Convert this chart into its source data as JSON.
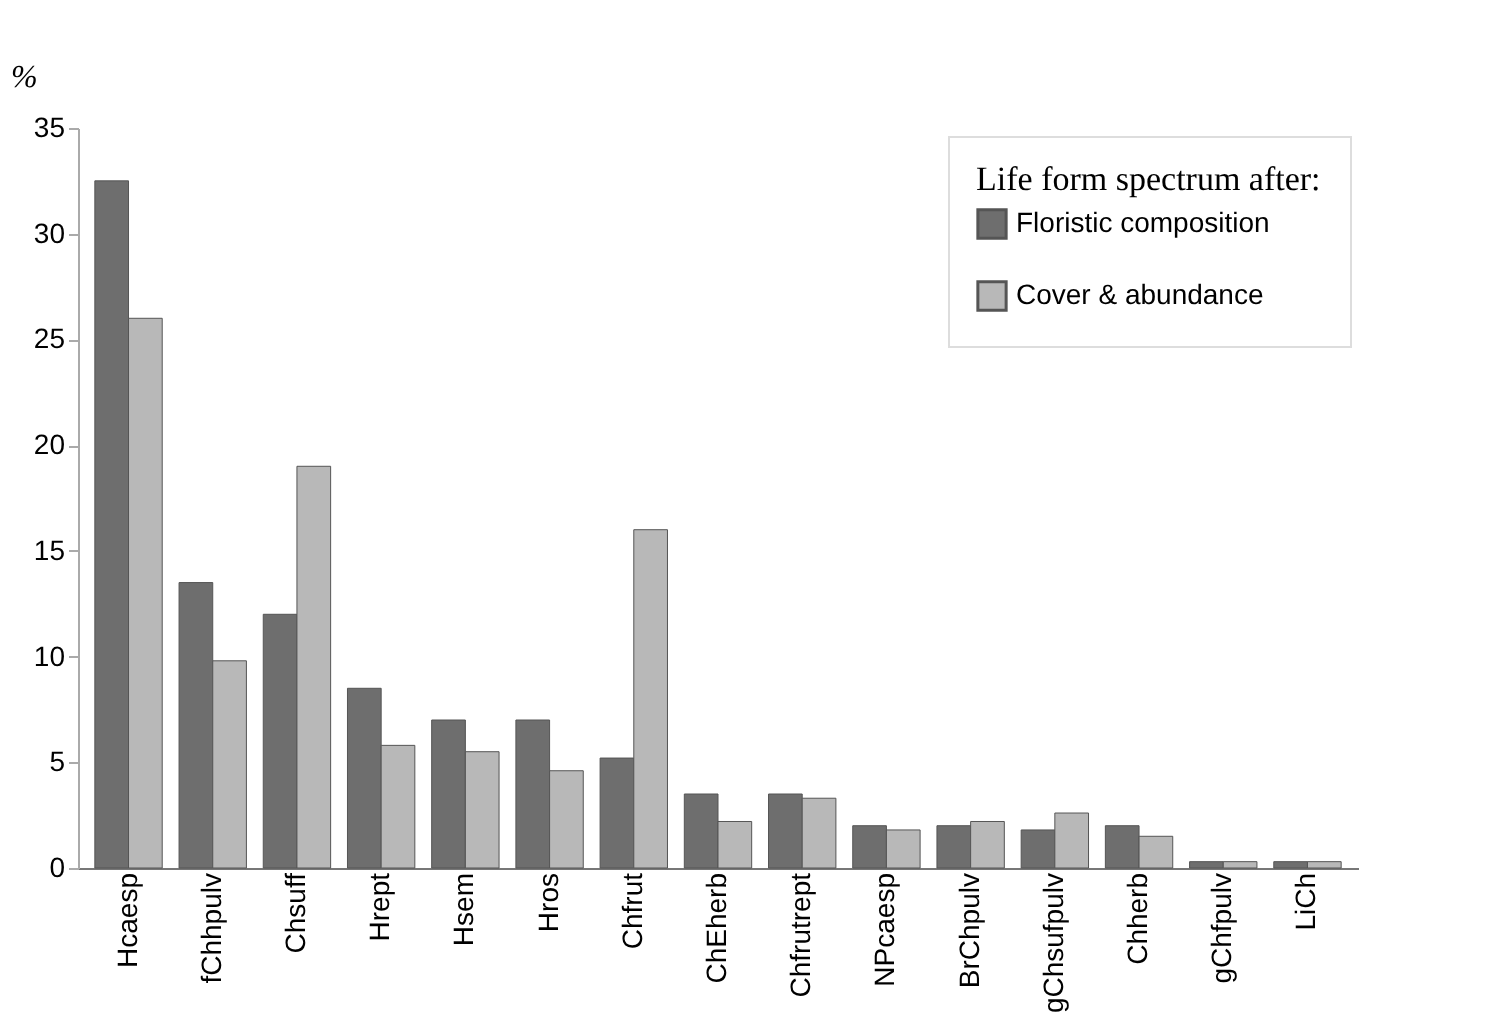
{
  "chart_data": {
    "type": "bar",
    "ylabel": "%",
    "legend_title": "Life form spectrum after:",
    "categories": [
      "Hcaesp",
      "fChhpulv",
      "Chsuff",
      "Hrept",
      "Hsem",
      "Hros",
      "Chfrut",
      "ChEherb",
      "Chfrutrept",
      "NPcaesp",
      "BrChpulv",
      "gChsufpulv",
      "Chherb",
      "gChfpulv",
      "LiCh"
    ],
    "series": [
      {
        "name": "Floristic composition",
        "color": "#6e6e6e",
        "values": [
          32.5,
          13.5,
          12,
          8.5,
          7,
          7,
          5.2,
          3.5,
          3.5,
          2,
          2,
          1.8,
          2,
          0.3,
          0.3
        ]
      },
      {
        "name": "Cover & abundance",
        "color": "#b8b8b8",
        "values": [
          26,
          9.8,
          19,
          5.8,
          5.5,
          4.6,
          16,
          2.2,
          3.3,
          1.8,
          2.2,
          2.6,
          1.5,
          0.3,
          0.3
        ]
      }
    ],
    "ylim": [
      0,
      35
    ],
    "yticks": [
      0,
      5,
      10,
      15,
      20,
      25,
      30,
      35
    ],
    "grid": false,
    "legend": "top right"
  }
}
